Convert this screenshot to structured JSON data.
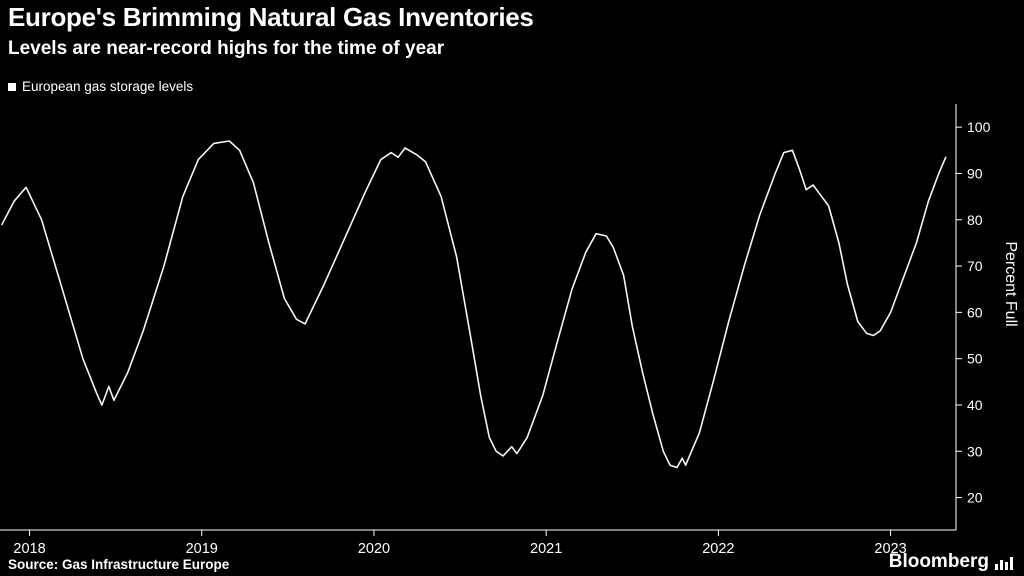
{
  "header": {
    "title": "Europe's Brimming Natural Gas Inventories",
    "subtitle": "Levels are near-record highs for the time of year"
  },
  "legend": {
    "label": "European gas storage levels"
  },
  "footer": {
    "source": "Source: Gas Infrastructure Europe",
    "brand": "Bloomberg"
  },
  "colors": {
    "background": "#000000",
    "foreground": "#ffffff",
    "line": "#f5f5f5",
    "legend_marker": "#ffffff"
  },
  "icons": {
    "legend_marker": "filled-square",
    "brand_icon": "bar-chart"
  },
  "chart_data": {
    "type": "line",
    "title": "Europe's Brimming Natural Gas Inventories",
    "subtitle": "Levels are near-record highs for the time of year",
    "xlabel": "",
    "ylabel": "Percent Full",
    "legend_position": "top-left",
    "grid": false,
    "xlim": [
      2017.84,
      2023.38
    ],
    "ylim": [
      13,
      105
    ],
    "x_ticks": [
      2018,
      2019,
      2020,
      2021,
      2022,
      2023
    ],
    "x_tick_labels": [
      "2018",
      "2019",
      "2020",
      "2021",
      "2022",
      "2023"
    ],
    "y_ticks": [
      20,
      30,
      40,
      50,
      60,
      70,
      80,
      90,
      100
    ],
    "x": [
      2017.84,
      2017.91,
      2017.98,
      2018.07,
      2018.19,
      2018.31,
      2018.39,
      2018.42,
      2018.46,
      2018.49,
      2018.57,
      2018.66,
      2018.78,
      2018.89,
      2018.98,
      2019.07,
      2019.16,
      2019.22,
      2019.3,
      2019.39,
      2019.48,
      2019.55,
      2019.6,
      2019.71,
      2019.83,
      2019.95,
      2020.04,
      2020.1,
      2020.14,
      2020.18,
      2020.25,
      2020.3,
      2020.39,
      2020.48,
      2020.56,
      2020.62,
      2020.67,
      2020.71,
      2020.75,
      2020.8,
      2020.83,
      2020.89,
      2020.98,
      2021.06,
      2021.15,
      2021.23,
      2021.29,
      2021.35,
      2021.39,
      2021.45,
      2021.5,
      2021.56,
      2021.62,
      2021.68,
      2021.72,
      2021.76,
      2021.79,
      2021.81,
      2021.89,
      2021.97,
      2022.06,
      2022.15,
      2022.24,
      2022.33,
      2022.38,
      2022.43,
      2022.47,
      2022.51,
      2022.55,
      2022.59,
      2022.64,
      2022.7,
      2022.75,
      2022.81,
      2022.86,
      2022.9,
      2022.94,
      2023.0,
      2023.07,
      2023.15,
      2023.22,
      2023.28,
      2023.32
    ],
    "series": [
      {
        "name": "European gas storage levels",
        "unit": "percent full",
        "y": [
          79,
          84,
          87,
          80,
          65,
          50,
          42.5,
          40,
          44,
          41,
          47,
          56,
          70,
          85,
          93,
          96.5,
          97,
          95,
          88,
          75,
          63,
          58.5,
          57.5,
          66,
          76,
          86,
          93,
          94.5,
          93.5,
          95.5,
          94,
          92.5,
          85,
          72,
          55,
          42,
          33,
          30,
          29,
          31,
          29.5,
          33,
          42,
          53,
          65,
          73,
          77,
          76.5,
          74,
          68,
          57,
          47,
          38,
          30,
          27,
          26.5,
          28.5,
          27,
          34,
          45,
          58,
          70,
          81,
          90,
          94.5,
          95,
          91,
          86.5,
          87.5,
          85.5,
          83,
          75,
          66,
          58,
          55.5,
          55,
          56,
          60,
          67,
          75,
          84,
          90,
          93.5
        ]
      }
    ]
  }
}
